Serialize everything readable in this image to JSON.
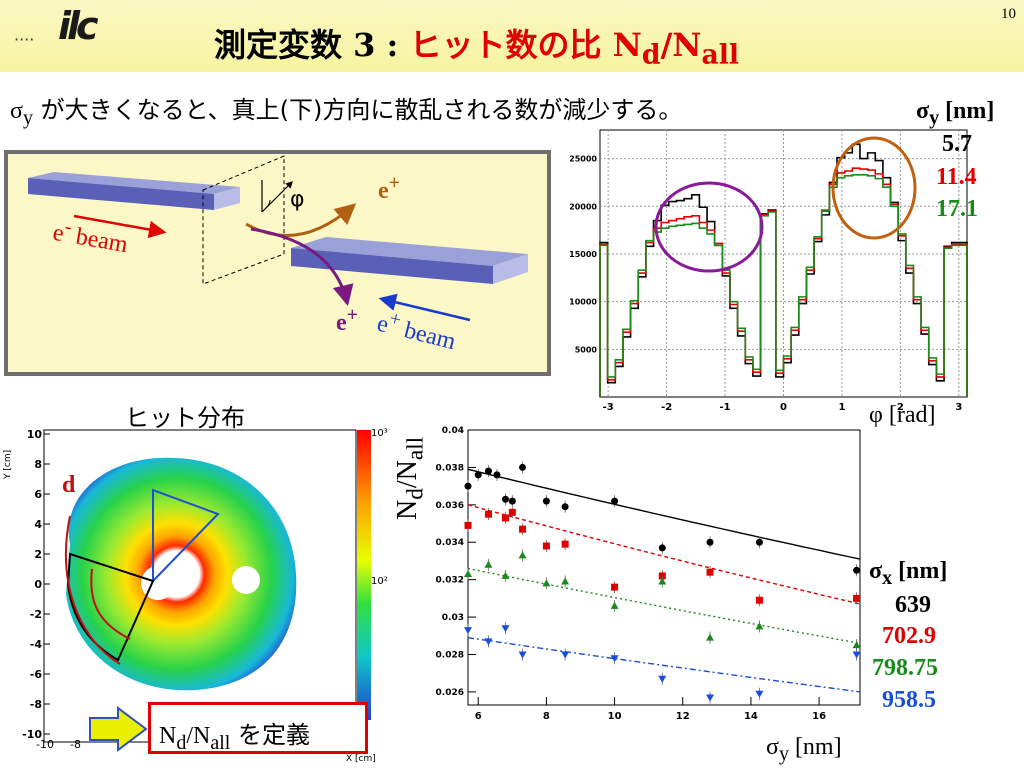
{
  "page_number": "10",
  "logo": {
    "dots": "····",
    "text": "ilc"
  },
  "title": {
    "prefix": "測定変数 3 : ",
    "highlight": "ヒット数の比 ",
    "n": "N",
    "sub_d": "d",
    "slash": "/N",
    "sub_all": "all"
  },
  "subtitle": {
    "sigma": "σ",
    "sub": "y",
    "text": " が大きくなると、真上(下)方向に散乱される数が減少する。"
  },
  "diagram": {
    "e_minus": "e",
    "e_minus_sup": "-",
    "beam": " beam",
    "e_plus_beam": "e",
    "e_plus_beam_sup": "+",
    "phi": "φ",
    "e_plus_out": "e",
    "e_plus_out_sup": "+",
    "e_plus_down": "e",
    "e_plus_down_sup": "+"
  },
  "hist_legend": {
    "header_sigma": "σ",
    "header_sub": "y",
    "header_unit": " [nm]",
    "items": [
      {
        "label": "5.7",
        "color": "#000000"
      },
      {
        "label": "11.4",
        "color": "#e00000"
      },
      {
        "label": "17.1",
        "color": "#1a8a1a"
      }
    ]
  },
  "hit_dist": {
    "title": "ヒット分布",
    "ylabel": "Y [cm]",
    "xlabel": "X [cm]",
    "d_label": "d",
    "yticks": [
      "10",
      "8",
      "6",
      "4",
      "2",
      "0",
      "-2",
      "-4",
      "-6",
      "-8",
      "-10"
    ],
    "xticks": [
      "-10",
      "-8"
    ],
    "colorbar": [
      "10³",
      "10²"
    ]
  },
  "ratio_legend": {
    "header_sigma": "σ",
    "header_sub": "x",
    "header_unit": " [nm]",
    "items": [
      {
        "label": "639",
        "color": "#000000"
      },
      {
        "label": "702.9",
        "color": "#e00000"
      },
      {
        "label": "798.75",
        "color": "#1a8a1a"
      },
      {
        "label": "958.5",
        "color": "#1a4ed8"
      }
    ]
  },
  "define_box": {
    "n": "N",
    "sub_d": "d",
    "slash": "/N",
    "sub_all": "all",
    "text": " を定義"
  },
  "chart_data": [
    {
      "type": "line",
      "xlabel": "φ [rad]",
      "ylabel": "",
      "xlim": [
        -3.14,
        3.14
      ],
      "ylim": [
        0,
        28000
      ],
      "xticks": [
        -3,
        -2,
        -1,
        0,
        1,
        2,
        3
      ],
      "yticks": [
        5000,
        10000,
        15000,
        20000,
        25000
      ],
      "bins": 48,
      "series": [
        {
          "name": "5.7",
          "color": "#000000",
          "values": [
            16200,
            1500,
            3200,
            6300,
            9300,
            12600,
            15800,
            18500,
            20100,
            20500,
            20600,
            20800,
            21200,
            19900,
            18400,
            15900,
            12700,
            9300,
            6400,
            3500,
            2200,
            19200,
            19600,
            2100,
            3600,
            6500,
            9800,
            12900,
            16300,
            19100,
            22500,
            25100,
            25600,
            26500,
            25000,
            25600,
            24800,
            23000,
            20400,
            16400,
            13000,
            9800,
            6600,
            3400,
            1700,
            15800,
            16200,
            16200
          ]
        },
        {
          "name": "11.4",
          "color": "#e00000",
          "values": [
            16000,
            1800,
            3600,
            6800,
            9800,
            13000,
            16200,
            17700,
            18300,
            18500,
            18700,
            18900,
            19000,
            18300,
            17500,
            16100,
            13000,
            9700,
            6900,
            3900,
            2600,
            19100,
            19500,
            2500,
            4000,
            7000,
            10200,
            13300,
            16600,
            19500,
            22300,
            23500,
            23700,
            24000,
            23900,
            23800,
            23400,
            22300,
            20200,
            16900,
            13500,
            10200,
            7000,
            3800,
            2100,
            15700,
            16000,
            16000
          ]
        },
        {
          "name": "17.1",
          "color": "#1a8a1a",
          "values": [
            15900,
            2100,
            3900,
            7100,
            10100,
            13300,
            16400,
            17300,
            17700,
            17900,
            18000,
            18100,
            18200,
            17700,
            17100,
            15900,
            13300,
            10000,
            7200,
            4200,
            2900,
            19000,
            19400,
            2800,
            4300,
            7300,
            10500,
            13600,
            16800,
            19600,
            22000,
            23000,
            23200,
            23300,
            23300,
            23200,
            22900,
            22000,
            20000,
            17100,
            13800,
            10500,
            7300,
            4100,
            2400,
            15600,
            15900,
            15900
          ]
        }
      ]
    },
    {
      "type": "scatter",
      "xlabel": "σ",
      "xlabel_sub": "y",
      "xlabel_unit": " [nm]",
      "ylabel": "N",
      "ylabel_sub": "d",
      "ylabel_tail": "/N",
      "ylabel_tail_sub": "all",
      "xlim": [
        5.7,
        17.2
      ],
      "ylim": [
        0.0253,
        0.04
      ],
      "xticks": [
        6,
        8,
        10,
        12,
        14,
        16
      ],
      "yticks": [
        0.026,
        0.028,
        0.03,
        0.032,
        0.034,
        0.036,
        0.038,
        0.04
      ],
      "series": [
        {
          "name": "639",
          "color": "#000000",
          "marker": "circle",
          "fit_dash": "",
          "fit": [
            0.0379,
            0.0331
          ],
          "points": [
            [
              5.7,
              0.037
            ],
            [
              6.0,
              0.0376
            ],
            [
              6.3,
              0.0378
            ],
            [
              6.55,
              0.0376
            ],
            [
              6.8,
              0.0363
            ],
            [
              7.0,
              0.0362
            ],
            [
              7.3,
              0.038
            ],
            [
              8.0,
              0.0362
            ],
            [
              8.55,
              0.0359
            ],
            [
              10.0,
              0.0362
            ],
            [
              11.4,
              0.0337
            ],
            [
              12.8,
              0.034
            ],
            [
              14.25,
              0.034
            ],
            [
              17.1,
              0.0325
            ]
          ]
        },
        {
          "name": "702.9",
          "color": "#e00000",
          "marker": "square",
          "fit_dash": "4,3",
          "fit": [
            0.036,
            0.0307
          ],
          "points": [
            [
              5.7,
              0.0349
            ],
            [
              6.3,
              0.0355
            ],
            [
              6.8,
              0.0353
            ],
            [
              7.0,
              0.0356
            ],
            [
              7.3,
              0.0347
            ],
            [
              8.0,
              0.0338
            ],
            [
              8.55,
              0.0339
            ],
            [
              10.0,
              0.0316
            ],
            [
              11.4,
              0.0322
            ],
            [
              12.8,
              0.0324
            ],
            [
              14.25,
              0.0309
            ],
            [
              17.1,
              0.031
            ]
          ]
        },
        {
          "name": "798.75",
          "color": "#1a8a1a",
          "marker": "triangle",
          "fit_dash": "2,3",
          "fit": [
            0.0326,
            0.0286
          ],
          "points": [
            [
              5.7,
              0.0323
            ],
            [
              6.3,
              0.0328
            ],
            [
              6.8,
              0.0322
            ],
            [
              7.3,
              0.0333
            ],
            [
              8.0,
              0.0318
            ],
            [
              8.55,
              0.0319
            ],
            [
              10.0,
              0.0306
            ],
            [
              11.4,
              0.0319
            ],
            [
              12.8,
              0.0289
            ],
            [
              14.25,
              0.0295
            ],
            [
              17.1,
              0.0285
            ]
          ]
        },
        {
          "name": "958.5",
          "color": "#1a4ed8",
          "marker": "down-triangle",
          "fit_dash": "6,3,2,3",
          "fit": [
            0.0289,
            0.026
          ],
          "points": [
            [
              5.7,
              0.0293
            ],
            [
              6.3,
              0.0287
            ],
            [
              6.8,
              0.0294
            ],
            [
              7.3,
              0.028
            ],
            [
              8.55,
              0.028
            ],
            [
              10.0,
              0.0278
            ],
            [
              11.4,
              0.0267
            ],
            [
              12.8,
              0.0257
            ],
            [
              14.25,
              0.0259
            ],
            [
              17.1,
              0.028
            ]
          ]
        }
      ]
    }
  ]
}
